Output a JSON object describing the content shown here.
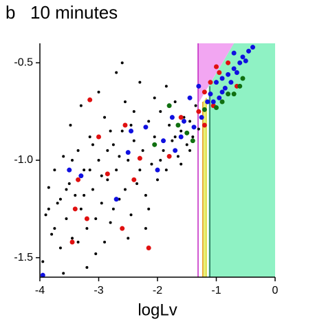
{
  "chart_data": {
    "type": "scatter",
    "panel_label": "b",
    "title": "10 minutes",
    "x_label": "logLv",
    "xlim": [
      -4,
      0
    ],
    "ylim": [
      -1.6,
      -0.4
    ],
    "xticks": [
      -4,
      -3,
      -2,
      -1,
      0
    ],
    "yticks": [
      {
        "value": -1.5,
        "label": "-1.5"
      },
      {
        "value": -1.0,
        "label": "-1.0"
      },
      {
        "value": -0.5,
        "label": "-0.5"
      }
    ],
    "regions": [
      {
        "color": "#f2a6f2",
        "points": [
          [
            -1.31,
            -0.4
          ],
          [
            -0.7,
            -0.4
          ],
          [
            -1.31,
            -0.71
          ]
        ]
      },
      {
        "color": "#8ff2c4",
        "points": [
          [
            -1.13,
            -1.6
          ],
          [
            0,
            -1.6
          ],
          [
            0,
            -0.4
          ],
          [
            -0.7,
            -0.4
          ],
          [
            -1.13,
            -0.62
          ]
        ]
      },
      {
        "color": "#e8f07a",
        "points": [
          [
            -1.23,
            -1.6
          ],
          [
            -1.17,
            -1.6
          ],
          [
            -1.17,
            -0.68
          ],
          [
            -1.23,
            -0.7
          ]
        ]
      }
    ],
    "vlines": [
      {
        "x": -1.31,
        "ymax": -0.4,
        "color": "#c020c0"
      },
      {
        "x": -1.23,
        "ymax": -0.7,
        "color": "#e89a20"
      },
      {
        "x": -1.17,
        "ymax": -0.68,
        "color": "#d8d830"
      },
      {
        "x": -1.11,
        "ymax": -0.62,
        "color": "#206850"
      }
    ],
    "series": [
      {
        "color": "#000000",
        "size": 2,
        "x": [
          -3.95,
          -3.9,
          -3.85,
          -3.8,
          -3.75,
          -3.7,
          -3.65,
          -3.6,
          -3.55,
          -3.5,
          -3.48,
          -3.45,
          -3.4,
          -3.35,
          -3.3,
          -3.25,
          -3.2,
          -3.15,
          -3.1,
          -3.05,
          -3.0,
          -2.95,
          -2.9,
          -2.85,
          -2.8,
          -2.75,
          -2.7,
          -2.65,
          -2.6,
          -2.55,
          -2.5,
          -2.45,
          -2.4,
          -2.35,
          -2.3,
          -2.25,
          -2.2,
          -2.15,
          -2.1,
          -2.05,
          -2.0,
          -1.95,
          -1.9,
          -1.85,
          -1.8,
          -1.75,
          -1.7,
          -1.65,
          -1.6,
          -1.55,
          -1.5,
          -1.45,
          -1.4,
          -1.35,
          -1.3,
          -3.3,
          -3.0,
          -2.7,
          -2.6,
          -2.9,
          -3.6,
          -3.2,
          -2.5,
          -2.2,
          -3.75,
          -3.45,
          -3.1,
          -2.8,
          -2.4,
          -2.05,
          -1.85,
          -1.7,
          -2.3,
          -2.65,
          -2.95,
          -3.25,
          -3.55,
          -3.85,
          -2.15,
          -1.95,
          -1.6,
          -2.45,
          -2.75,
          -3.05,
          -3.35,
          -3.65,
          -2.55,
          -2.85,
          -3.15,
          -1.45
        ],
        "values": [
          -1.52,
          -1.28,
          -1.14,
          -1.38,
          -1.05,
          -1.22,
          -1.45,
          -0.98,
          -1.3,
          -1.12,
          -0.82,
          -1.4,
          -1.18,
          -0.95,
          -1.25,
          -1.05,
          -1.35,
          -0.88,
          -1.15,
          -1.48,
          -1.0,
          -1.22,
          -0.78,
          -1.1,
          -1.32,
          -0.92,
          -1.05,
          -1.2,
          -0.85,
          -0.7,
          -1.0,
          -1.28,
          -0.9,
          -1.12,
          -0.6,
          -0.95,
          -1.18,
          -0.8,
          -1.02,
          -0.88,
          -1.1,
          -0.75,
          -0.95,
          -1.05,
          -0.82,
          -0.9,
          -0.7,
          -0.98,
          -0.85,
          -0.78,
          -0.92,
          -0.8,
          -0.88,
          -0.72,
          -0.84,
          -0.72,
          -0.65,
          -0.55,
          -0.5,
          -1.42,
          -1.58,
          -1.55,
          -1.4,
          -1.35,
          -1.35,
          -1.0,
          -0.92,
          -0.85,
          -0.75,
          -0.68,
          -0.62,
          -0.88,
          -1.05,
          -0.98,
          -1.08,
          -1.18,
          -1.15,
          -1.25,
          -1.25,
          -1.0,
          -1.02,
          -0.82,
          -1.25,
          -1.3,
          -1.42,
          -1.2,
          -1.15,
          -0.95,
          -1.05,
          -0.95
        ]
      },
      {
        "color": "#e01010",
        "size": 3.5,
        "x": [
          -3.45,
          -3.35,
          -3.4,
          -3.2,
          -3.15,
          -3.0,
          -2.85,
          -2.6,
          -2.55,
          -2.3,
          -2.4,
          -1.8,
          -1.6,
          -1.3,
          -1.2,
          -1.1,
          -0.95,
          -0.8,
          -0.65,
          -1.05,
          -1.2,
          -2.15,
          -1.0
        ],
        "values": [
          -1.42,
          -1.1,
          -1.25,
          -1.3,
          -0.69,
          -0.88,
          -1.07,
          -1.35,
          -0.82,
          -0.99,
          -1.1,
          -0.98,
          -0.78,
          -0.75,
          -0.65,
          -0.6,
          -0.55,
          -0.5,
          -0.62,
          -0.72,
          -0.82,
          -1.45,
          -0.52
        ]
      },
      {
        "color": "#1010e0",
        "size": 3.5,
        "x": [
          -3.95,
          -3.5,
          -3.3,
          -2.45,
          -2.5,
          -2.0,
          -1.9,
          -1.75,
          -1.6,
          -1.55,
          -1.45,
          -1.38,
          -1.3,
          -1.25,
          -1.15,
          -1.1,
          -1.0,
          -0.95,
          -0.9,
          -0.85,
          -0.8,
          -0.75,
          -0.7,
          -0.65,
          -0.6,
          -0.55,
          -0.5,
          -0.45,
          -0.38,
          -0.7,
          -1.05,
          -0.9,
          -1.7,
          -2.7,
          -2.2
        ],
        "values": [
          -1.59,
          -1.05,
          -1.08,
          -0.85,
          -0.96,
          -1.05,
          -0.9,
          -0.78,
          -0.88,
          -0.8,
          -0.68,
          -0.83,
          -0.62,
          -0.78,
          -0.7,
          -0.66,
          -0.6,
          -0.68,
          -0.58,
          -0.63,
          -0.56,
          -0.6,
          -0.53,
          -0.55,
          -0.5,
          -0.47,
          -0.49,
          -0.44,
          -0.42,
          -0.45,
          -0.7,
          -0.65,
          -0.95,
          -1.2,
          -0.83
        ]
      },
      {
        "color": "#107010",
        "size": 3.5,
        "x": [
          -1.65,
          -1.5,
          -1.4,
          -1.2,
          -1.0,
          -0.9,
          -0.8,
          -0.7,
          -0.6,
          -0.55,
          -1.8,
          -2.05
        ],
        "values": [
          -0.82,
          -0.86,
          -0.9,
          -0.74,
          -0.73,
          -0.7,
          -0.66,
          -0.66,
          -0.62,
          -0.58,
          -0.72,
          -0.92
        ]
      }
    ]
  }
}
